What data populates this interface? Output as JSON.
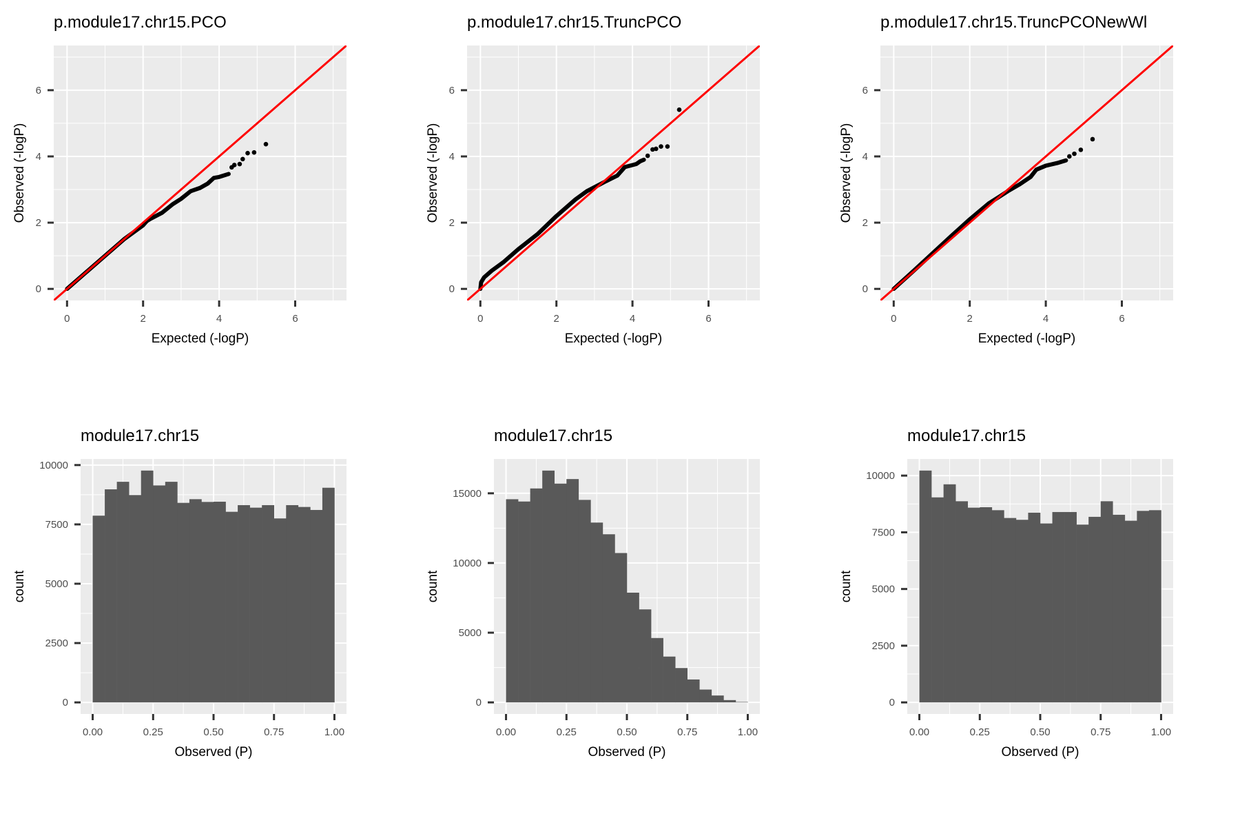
{
  "colors": {
    "panel_background": "#ebebeb",
    "grid": "#ffffff",
    "points": "#000000",
    "reference_line": "#ff0000",
    "bars": "#595959",
    "ticks": "#333333"
  },
  "chart_data": [
    {
      "type": "scatter",
      "title": "p.module17.chr15.PCO",
      "xlabel": "Expected (-logP)",
      "ylabel": "Observed (-logP)",
      "xlim": [
        -0.35,
        7.35
      ],
      "ylim": [
        -0.35,
        7.35
      ],
      "xticks": [
        "0",
        "2",
        "4",
        "6"
      ],
      "yticks": [
        "0",
        "2",
        "4",
        "6"
      ],
      "grid": true,
      "reference_line": "y = x",
      "curve": [
        [
          0,
          0
        ],
        [
          0.5,
          0.5
        ],
        [
          1,
          1
        ],
        [
          1.5,
          1.5
        ],
        [
          2,
          1.92
        ],
        [
          2.1,
          2.05
        ],
        [
          2.2,
          2.12
        ],
        [
          2.5,
          2.3
        ],
        [
          2.77,
          2.55
        ],
        [
          3.0,
          2.72
        ],
        [
          3.25,
          2.95
        ],
        [
          3.5,
          3.05
        ],
        [
          3.7,
          3.18
        ],
        [
          3.86,
          3.35
        ],
        [
          4.0,
          3.38
        ],
        [
          4.25,
          3.47
        ]
      ],
      "outliers": [
        [
          4.33,
          3.67
        ],
        [
          4.4,
          3.74
        ],
        [
          4.54,
          3.77
        ],
        [
          4.62,
          3.92
        ],
        [
          4.75,
          4.1
        ],
        [
          4.92,
          4.12
        ],
        [
          5.23,
          4.37
        ]
      ]
    },
    {
      "type": "scatter",
      "title": "p.module17.chr15.TruncPCO",
      "xlabel": "Expected (-logP)",
      "ylabel": "Observed (-logP)",
      "xlim": [
        -0.35,
        7.35
      ],
      "ylim": [
        -0.35,
        7.35
      ],
      "xticks": [
        "0",
        "2",
        "4",
        "6"
      ],
      "yticks": [
        "0",
        "2",
        "4",
        "6"
      ],
      "grid": true,
      "reference_line": "y = x",
      "curve": [
        [
          0,
          0
        ],
        [
          0.02,
          0.2
        ],
        [
          0.1,
          0.35
        ],
        [
          0.3,
          0.55
        ],
        [
          0.6,
          0.8
        ],
        [
          1,
          1.2
        ],
        [
          1.5,
          1.65
        ],
        [
          2,
          2.2
        ],
        [
          2.5,
          2.7
        ],
        [
          2.8,
          2.95
        ],
        [
          3.0,
          3.07
        ],
        [
          3.3,
          3.25
        ],
        [
          3.6,
          3.42
        ],
        [
          3.8,
          3.68
        ],
        [
          4.0,
          3.74
        ],
        [
          4.1,
          3.77
        ],
        [
          4.2,
          3.85
        ],
        [
          4.3,
          3.9
        ]
      ],
      "outliers": [
        [
          4.4,
          4.02
        ],
        [
          4.53,
          4.21
        ],
        [
          4.62,
          4.23
        ],
        [
          4.75,
          4.3
        ],
        [
          4.92,
          4.3
        ],
        [
          5.23,
          5.41
        ]
      ]
    },
    {
      "type": "scatter",
      "title": "p.module17.chr15.TruncPCONewWl",
      "xlabel": "Expected (-logP)",
      "ylabel": "Observed (-logP)",
      "xlim": [
        -0.35,
        7.35
      ],
      "ylim": [
        -0.35,
        7.35
      ],
      "xticks": [
        "0",
        "2",
        "4",
        "6"
      ],
      "yticks": [
        "0",
        "2",
        "4",
        "6"
      ],
      "grid": true,
      "reference_line": "y = x",
      "curve": [
        [
          0,
          0
        ],
        [
          0.5,
          0.52
        ],
        [
          1,
          1.05
        ],
        [
          1.5,
          1.58
        ],
        [
          2,
          2.1
        ],
        [
          2.5,
          2.58
        ],
        [
          2.8,
          2.8
        ],
        [
          3.0,
          2.95
        ],
        [
          3.3,
          3.15
        ],
        [
          3.6,
          3.38
        ],
        [
          3.75,
          3.6
        ],
        [
          4.0,
          3.72
        ],
        [
          4.3,
          3.8
        ],
        [
          4.53,
          3.88
        ]
      ],
      "outliers": [
        [
          4.62,
          4.0
        ],
        [
          4.75,
          4.08
        ],
        [
          4.92,
          4.2
        ],
        [
          5.23,
          4.52
        ]
      ]
    },
    {
      "type": "bar",
      "title": "module17.chr15",
      "xlabel": "Observed (P)",
      "ylabel": "count",
      "bins": 20,
      "bin_range": [
        0,
        1
      ],
      "xlim": [
        -0.05,
        1.05
      ],
      "ylim": [
        -488,
        10256
      ],
      "xticks": [
        "0.00",
        "0.25",
        "0.50",
        "0.75",
        "1.00"
      ],
      "yticks": [
        "0",
        "2500",
        "5000",
        "7500",
        "10000"
      ],
      "grid": true,
      "values": [
        7867,
        8977,
        9295,
        8736,
        9768,
        9141,
        9295,
        8407,
        8562,
        8446,
        8456,
        8031,
        8311,
        8205,
        8311,
        7751,
        8311,
        8234,
        8108,
        9044
      ]
    },
    {
      "type": "bar",
      "title": "module17.chr15",
      "xlabel": "Observed (P)",
      "ylabel": "count",
      "bins": 20,
      "bin_range": [
        0,
        1
      ],
      "xlim": [
        -0.05,
        1.05
      ],
      "ylim": [
        -832,
        17462
      ],
      "xticks": [
        "0.00",
        "0.25",
        "0.50",
        "0.75",
        "1.00"
      ],
      "yticks": [
        "0",
        "5000",
        "10000",
        "15000"
      ],
      "grid": true,
      "values": [
        14575,
        14411,
        15348,
        16630,
        15693,
        16022,
        14527,
        12899,
        12061,
        10714,
        7871,
        6671,
        4617,
        3286,
        2465,
        1643,
        920,
        493,
        164,
        33
      ]
    },
    {
      "type": "bar",
      "title": "module17.chr15",
      "xlabel": "Observed (P)",
      "ylabel": "count",
      "bins": 20,
      "bin_range": [
        0,
        1
      ],
      "xlim": [
        -0.05,
        1.05
      ],
      "ylim": [
        -511,
        10733
      ],
      "xticks": [
        "0.00",
        "0.25",
        "0.50",
        "0.75",
        "1.00"
      ],
      "yticks": [
        "0",
        "2500",
        "5000",
        "7500",
        "10000"
      ],
      "grid": true,
      "values": [
        10222,
        9040,
        9616,
        8869,
        8586,
        8606,
        8475,
        8131,
        8051,
        8364,
        7889,
        8394,
        8394,
        7838,
        8182,
        8869,
        8273,
        8010,
        8444,
        8475
      ]
    }
  ]
}
